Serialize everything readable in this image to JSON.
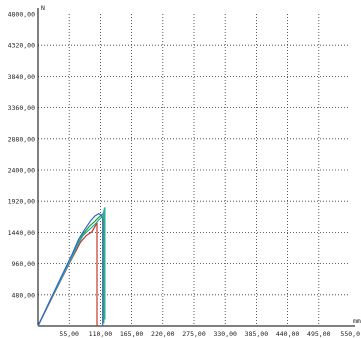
{
  "chart_data": {
    "type": "line",
    "title": "",
    "xlabel": "",
    "ylabel": "",
    "x_unit": "mm",
    "y_unit": "N",
    "xlim": [
      0,
      550
    ],
    "ylim": [
      0,
      4800
    ],
    "x_ticks": [
      "55,00",
      "110,00",
      "165,00",
      "220,00",
      "275,00",
      "330,00",
      "385,00",
      "440,00",
      "495,00",
      "550,0"
    ],
    "y_ticks": [
      "480,00",
      "960,00",
      "1440,00",
      "1920,00",
      "2400,00",
      "2880,00",
      "3360,00",
      "3840,00",
      "4320,00",
      "4800,00"
    ],
    "grid": true,
    "series": [
      {
        "color": "#cc3333",
        "points": [
          [
            0,
            0
          ],
          [
            20,
            350
          ],
          [
            40,
            700
          ],
          [
            60,
            1040
          ],
          [
            75,
            1290
          ],
          [
            85,
            1390
          ],
          [
            95,
            1450
          ],
          [
            103,
            1570
          ],
          [
            104,
            1590
          ],
          [
            104,
            0
          ]
        ]
      },
      {
        "color": "#22a02a",
        "points": [
          [
            0,
            0
          ],
          [
            20,
            360
          ],
          [
            40,
            720
          ],
          [
            60,
            1060
          ],
          [
            72,
            1300
          ],
          [
            80,
            1420
          ],
          [
            90,
            1530
          ],
          [
            100,
            1610
          ],
          [
            108,
            1680
          ],
          [
            115,
            1730
          ],
          [
            116,
            1760
          ],
          [
            116,
            40
          ]
        ]
      },
      {
        "color": "#20b0a8",
        "points": [
          [
            0,
            0
          ],
          [
            20,
            360
          ],
          [
            40,
            710
          ],
          [
            60,
            1060
          ],
          [
            72,
            1280
          ],
          [
            80,
            1400
          ],
          [
            90,
            1480
          ],
          [
            100,
            1560
          ],
          [
            108,
            1640
          ],
          [
            115,
            1700
          ],
          [
            117,
            1810
          ],
          [
            118,
            1820
          ],
          [
            118,
            100
          ]
        ]
      },
      {
        "color": "#3366cc",
        "points": [
          [
            0,
            0
          ],
          [
            20,
            370
          ],
          [
            40,
            740
          ],
          [
            60,
            1100
          ],
          [
            72,
            1340
          ],
          [
            82,
            1480
          ],
          [
            92,
            1610
          ],
          [
            100,
            1690
          ],
          [
            107,
            1730
          ],
          [
            112,
            1700
          ],
          [
            114,
            1650
          ],
          [
            114,
            0
          ]
        ]
      }
    ]
  }
}
